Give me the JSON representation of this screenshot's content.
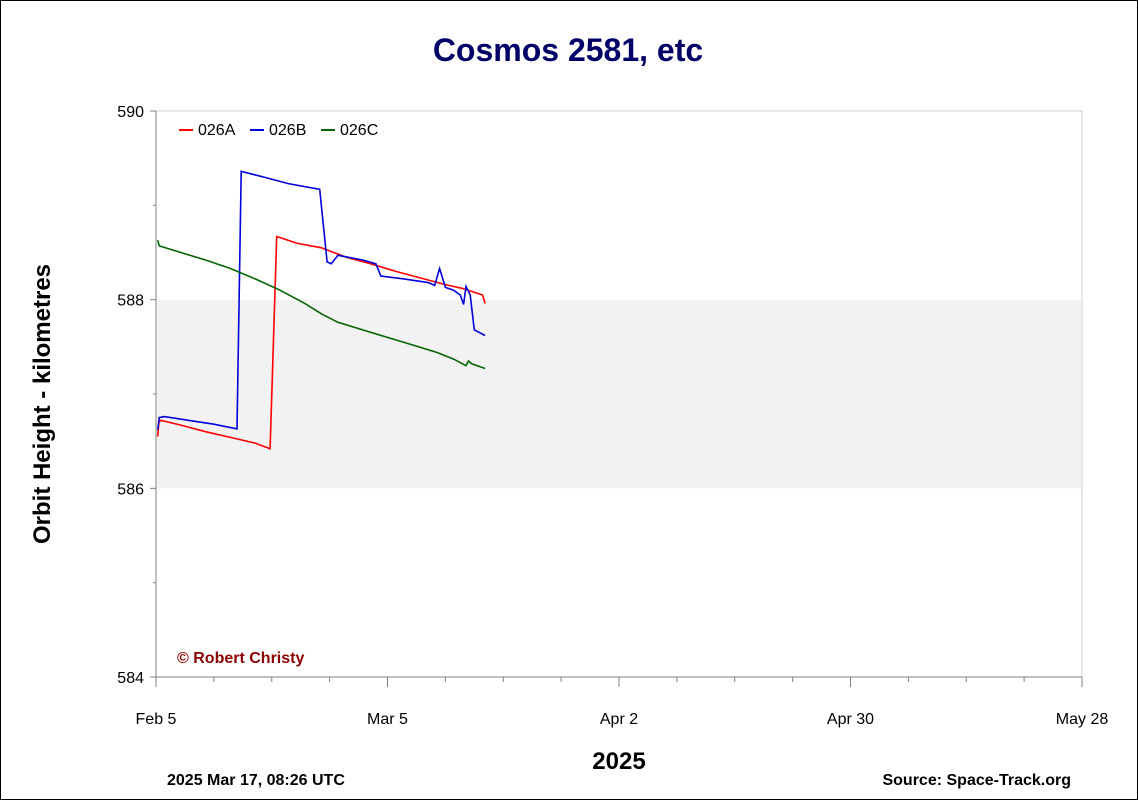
{
  "chart_data": {
    "type": "line",
    "title": "Cosmos 2581, etc",
    "xlabel": "2025",
    "ylabel": "Orbit Height - kilometres",
    "x_ticks": [
      "Feb 5",
      "Mar 5",
      "Apr 2",
      "Apr 30",
      "May 28"
    ],
    "x_tick_days": [
      0,
      28,
      56,
      84,
      112
    ],
    "xlim": [
      0,
      112
    ],
    "ylim": [
      584,
      590
    ],
    "y_ticks": [
      584,
      586,
      588,
      590
    ],
    "y_tick_labels": [
      "584",
      "586",
      "588",
      "590"
    ],
    "shaded_band": [
      586,
      588
    ],
    "grid": false,
    "legend_position": "top-left",
    "series": [
      {
        "name": "026A",
        "color": "#ff0000",
        "points": [
          [
            0.2,
            586.55
          ],
          [
            0.35,
            586.7
          ],
          [
            0.6,
            586.72
          ],
          [
            3,
            586.67
          ],
          [
            6,
            586.6
          ],
          [
            9,
            586.54
          ],
          [
            12,
            586.48
          ],
          [
            13.8,
            586.42
          ],
          [
            14.6,
            588.67
          ],
          [
            17,
            588.6
          ],
          [
            20,
            588.55
          ],
          [
            23,
            588.45
          ],
          [
            26,
            588.38
          ],
          [
            29,
            588.3
          ],
          [
            32,
            588.23
          ],
          [
            35,
            588.16
          ],
          [
            37,
            588.12
          ],
          [
            39.5,
            588.05
          ],
          [
            39.8,
            587.96
          ]
        ]
      },
      {
        "name": "026B",
        "color": "#0000dd",
        "points": [
          [
            0.2,
            586.62
          ],
          [
            0.4,
            586.75
          ],
          [
            1,
            586.76
          ],
          [
            4,
            586.72
          ],
          [
            7,
            586.68
          ],
          [
            9.8,
            586.63
          ],
          [
            10.3,
            589.36
          ],
          [
            13,
            589.3
          ],
          [
            16,
            589.23
          ],
          [
            19.8,
            589.17
          ],
          [
            20.7,
            588.4
          ],
          [
            21.2,
            588.38
          ],
          [
            22,
            588.47
          ],
          [
            25,
            588.42
          ],
          [
            26.6,
            588.38
          ],
          [
            27.2,
            588.25
          ],
          [
            30,
            588.22
          ],
          [
            33,
            588.18
          ],
          [
            33.7,
            588.15
          ],
          [
            34.3,
            588.33
          ],
          [
            35,
            588.13
          ],
          [
            36,
            588.1
          ],
          [
            36.8,
            588.05
          ],
          [
            37.2,
            587.95
          ],
          [
            37.5,
            588.14
          ],
          [
            38,
            588.05
          ],
          [
            38.5,
            587.68
          ],
          [
            39.8,
            587.62
          ]
        ]
      },
      {
        "name": "026C",
        "color": "#006400",
        "points": [
          [
            0.2,
            588.63
          ],
          [
            0.4,
            588.57
          ],
          [
            3,
            588.5
          ],
          [
            6,
            588.42
          ],
          [
            9,
            588.33
          ],
          [
            12,
            588.22
          ],
          [
            15,
            588.1
          ],
          [
            18,
            587.96
          ],
          [
            20,
            587.85
          ],
          [
            22,
            587.76
          ],
          [
            25,
            587.68
          ],
          [
            28,
            587.6
          ],
          [
            31,
            587.52
          ],
          [
            34,
            587.44
          ],
          [
            36,
            587.37
          ],
          [
            37.5,
            587.3
          ],
          [
            37.8,
            587.35
          ],
          [
            38.2,
            587.32
          ],
          [
            39.8,
            587.27
          ]
        ]
      }
    ]
  },
  "annotations": {
    "copyright": "© Robert Christy",
    "timestamp": "2025 Mar 17, 08:26 UTC",
    "source": "Source: Space-Track.org"
  },
  "colors": {
    "title": "#000066",
    "copyright": "#8b0000",
    "band": "#f2f2f2",
    "axis": "#808080"
  }
}
